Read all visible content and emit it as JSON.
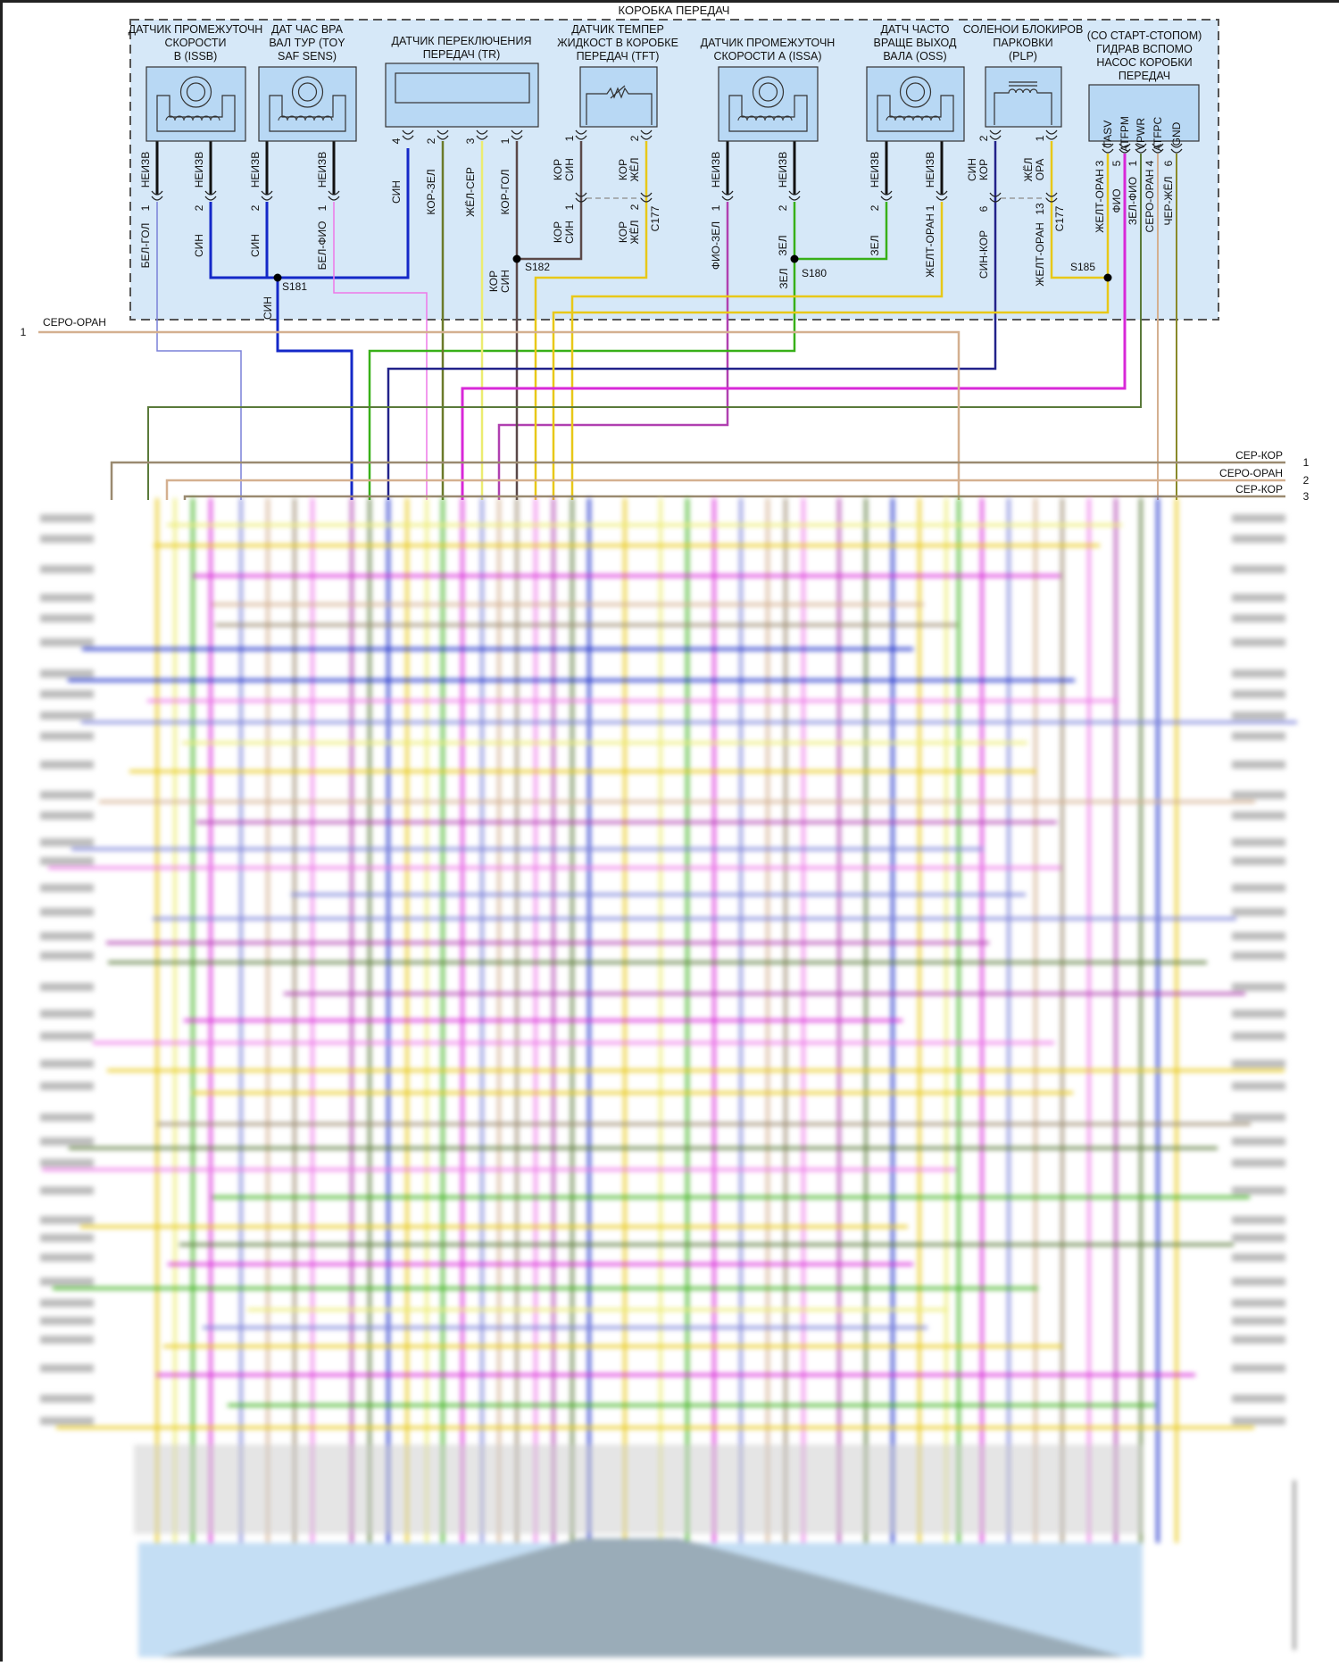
{
  "header": {
    "title": "КОРОБКА ПЕРЕДАЧ"
  },
  "colors": {
    "module_fill": "#d6e8f8",
    "black": "#111111",
    "blue": "#1428c8",
    "light_blue": "#7a80d8",
    "pink": "#ee78e8",
    "olive": "#6b7a2a",
    "yellow_pale": "#ecec70",
    "brown": "#5a4848",
    "yellow": "#e8c818",
    "magenta": "#d828d8",
    "purple": "#b040b0",
    "green": "#38b018",
    "dark_green": "#5a7a3a",
    "navy": "#22228a",
    "tan": "#d4b090",
    "gray_brown": "#9a8a70"
  },
  "components": [
    {
      "id": "issb",
      "title": [
        "ДАТЧИК ПРОМЕЖУТОЧН",
        "СКОРОСТИ",
        "В (ISSB)"
      ],
      "icon": "speed-sensor-icon",
      "wires": [
        {
          "upper": "НЕИЗВ",
          "lower": "БЕЛ-ГОЛ",
          "pin": "1"
        },
        {
          "upper": "НЕИЗВ",
          "lower": "СИН",
          "pin": "2"
        }
      ]
    },
    {
      "id": "toy",
      "title": [
        "ДАТ ЧАС ВРА",
        "ВАЛ ТУР (TOY",
        "SAF SENS)"
      ],
      "icon": "speed-sensor-icon",
      "wires": [
        {
          "upper": "НЕИЗВ",
          "lower": "СИН",
          "pin": "2"
        },
        {
          "upper": "НЕИЗВ",
          "lower": "БЕЛ-ФИО",
          "pin": "1"
        }
      ]
    },
    {
      "id": "tr",
      "title": [
        "ДАТЧИК ПЕРЕКЛЮЧЕНИЯ",
        "ПЕРЕДАЧ (TR)"
      ],
      "icon": "range-sensor-icon",
      "wires": [
        {
          "pin": "4",
          "label": "СИН"
        },
        {
          "pin": "2",
          "label": "КОР-ЗЕЛ"
        },
        {
          "pin": "3",
          "label": "ЖЁЛ-СЕР"
        },
        {
          "pin": "1",
          "label": "КОР-ГОЛ"
        }
      ]
    },
    {
      "id": "tft",
      "title": [
        "ДАТЧИК ТЕМПЕР",
        "ЖИДКОСТ В КОРОБКЕ",
        "ПЕРЕДАЧ (TFT)"
      ],
      "icon": "thermistor-icon",
      "wires": [
        {
          "pin": "1",
          "upper": [
            "КОР",
            "СИН"
          ],
          "lower_pin": "1",
          "lower": [
            "КОР",
            "СИН"
          ]
        },
        {
          "pin": "2",
          "upper": [
            "КОР",
            "ЖЁЛ"
          ],
          "lower_pin": "2",
          "lower": [
            "КОР",
            "ЖЁЛ"
          ]
        }
      ],
      "connector": "C177"
    },
    {
      "id": "issa",
      "title": [
        "ДАТЧИК ПРОМЕЖУТОЧН",
        "СКОРОСТИ А (ISSA)"
      ],
      "icon": "speed-sensor-icon",
      "wires": [
        {
          "upper": "НЕИЗВ",
          "lower": "ФИО-ЗЕЛ",
          "pin": "1"
        },
        {
          "upper": "НЕИЗВ",
          "lower": "ЗЕЛ",
          "pin": "2"
        }
      ]
    },
    {
      "id": "oss",
      "title": [
        "ДАТЧ ЧАСТО",
        "ВРАЩЕ ВЫХОД",
        "ВАЛА (OSS)"
      ],
      "icon": "speed-sensor-icon",
      "wires": [
        {
          "upper": "НЕИЗВ",
          "lower": "ЗЕЛ",
          "pin": "2"
        },
        {
          "upper": "НЕИЗВ",
          "lower": "ЖЕЛТ-ОРАН",
          "pin": "1"
        }
      ]
    },
    {
      "id": "plp",
      "title": [
        "СОЛЕНОИ БЛОКИРОВ",
        "ПАРКОВКИ",
        "(PLP)"
      ],
      "icon": "solenoid-icon",
      "wires": [
        {
          "pin": "2",
          "upper": [
            "СИН",
            "КОР"
          ],
          "lower_pin": "6",
          "lower": "СИН-КОР"
        },
        {
          "pin": "1",
          "upper": [
            "ЖЁЛ",
            "ОРА"
          ],
          "lower_pin": "13",
          "lower": "ЖЕЛТ-ОРАН"
        }
      ],
      "connector": "C177"
    },
    {
      "id": "pump",
      "title": [
        "(СО СТАРТ-СТОПОМ)",
        "ГИДРАВ ВСПОМО",
        "НАСОС КОРОБКИ",
        "ПЕРЕДАЧ"
      ],
      "icon": "pump-module-icon",
      "terminals": [
        "TASV",
        "ATFPM",
        "VPWR",
        "ATFPC",
        "GND"
      ],
      "wires": [
        {
          "label": "ЖЕЛТ-ОРАН",
          "pin": "3"
        },
        {
          "label": "ФИО",
          "pin": "5"
        },
        {
          "label": "ЗЕЛ-ФИО",
          "pin": "1"
        },
        {
          "label": "СЕРО-ОРАН",
          "pin": "4"
        },
        {
          "label": "ЧЕР-ЖЁЛ",
          "pin": "6"
        }
      ]
    }
  ],
  "splices": [
    {
      "id": "S181",
      "wire_label": "СИН"
    },
    {
      "id": "S182",
      "wire_label": [
        "КОР",
        "СИН"
      ]
    },
    {
      "id": "S180",
      "wire_label": "ЗЕЛ"
    },
    {
      "id": "S185"
    }
  ],
  "harness": {
    "left": [
      {
        "pin": "1",
        "label": "СЕРО-ОРАН"
      }
    ],
    "right": [
      {
        "pin": "1",
        "label": "СЕР-КОР"
      },
      {
        "pin": "2",
        "label": "СЕРО-ОРАН"
      },
      {
        "pin": "3",
        "label": "СЕР-КОР"
      }
    ]
  }
}
